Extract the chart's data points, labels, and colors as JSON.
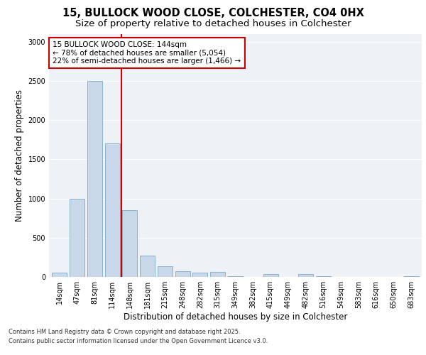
{
  "title_line1": "15, BULLOCK WOOD CLOSE, COLCHESTER, CO4 0HX",
  "title_line2": "Size of property relative to detached houses in Colchester",
  "xlabel": "Distribution of detached houses by size in Colchester",
  "ylabel": "Number of detached properties",
  "categories": [
    "14sqm",
    "47sqm",
    "81sqm",
    "114sqm",
    "148sqm",
    "181sqm",
    "215sqm",
    "248sqm",
    "282sqm",
    "315sqm",
    "349sqm",
    "382sqm",
    "415sqm",
    "449sqm",
    "482sqm",
    "516sqm",
    "549sqm",
    "583sqm",
    "616sqm",
    "650sqm",
    "683sqm"
  ],
  "values": [
    50,
    1000,
    2500,
    1700,
    850,
    270,
    140,
    70,
    50,
    65,
    10,
    0,
    40,
    0,
    40,
    5,
    0,
    0,
    0,
    0,
    5
  ],
  "bar_color": "#c8d8e8",
  "bar_edge_color": "#7aaac8",
  "vline_x": 3.5,
  "vline_color": "#cc0000",
  "annotation_line1": "15 BULLOCK WOOD CLOSE: 144sqm",
  "annotation_line2": "← 78% of detached houses are smaller (5,054)",
  "annotation_line3": "22% of semi-detached houses are larger (1,466) →",
  "annotation_box_color": "#cc0000",
  "ylim": [
    0,
    3100
  ],
  "yticks": [
    0,
    500,
    1000,
    1500,
    2000,
    2500,
    3000
  ],
  "background_color": "#eef2f6",
  "footer_line1": "Contains HM Land Registry data © Crown copyright and database right 2025.",
  "footer_line2": "Contains public sector information licensed under the Open Government Licence v3.0.",
  "title_fontsize": 10.5,
  "subtitle_fontsize": 9.5,
  "tick_fontsize": 7,
  "label_fontsize": 8.5,
  "annotation_fontsize": 7.5,
  "footer_fontsize": 6.0
}
